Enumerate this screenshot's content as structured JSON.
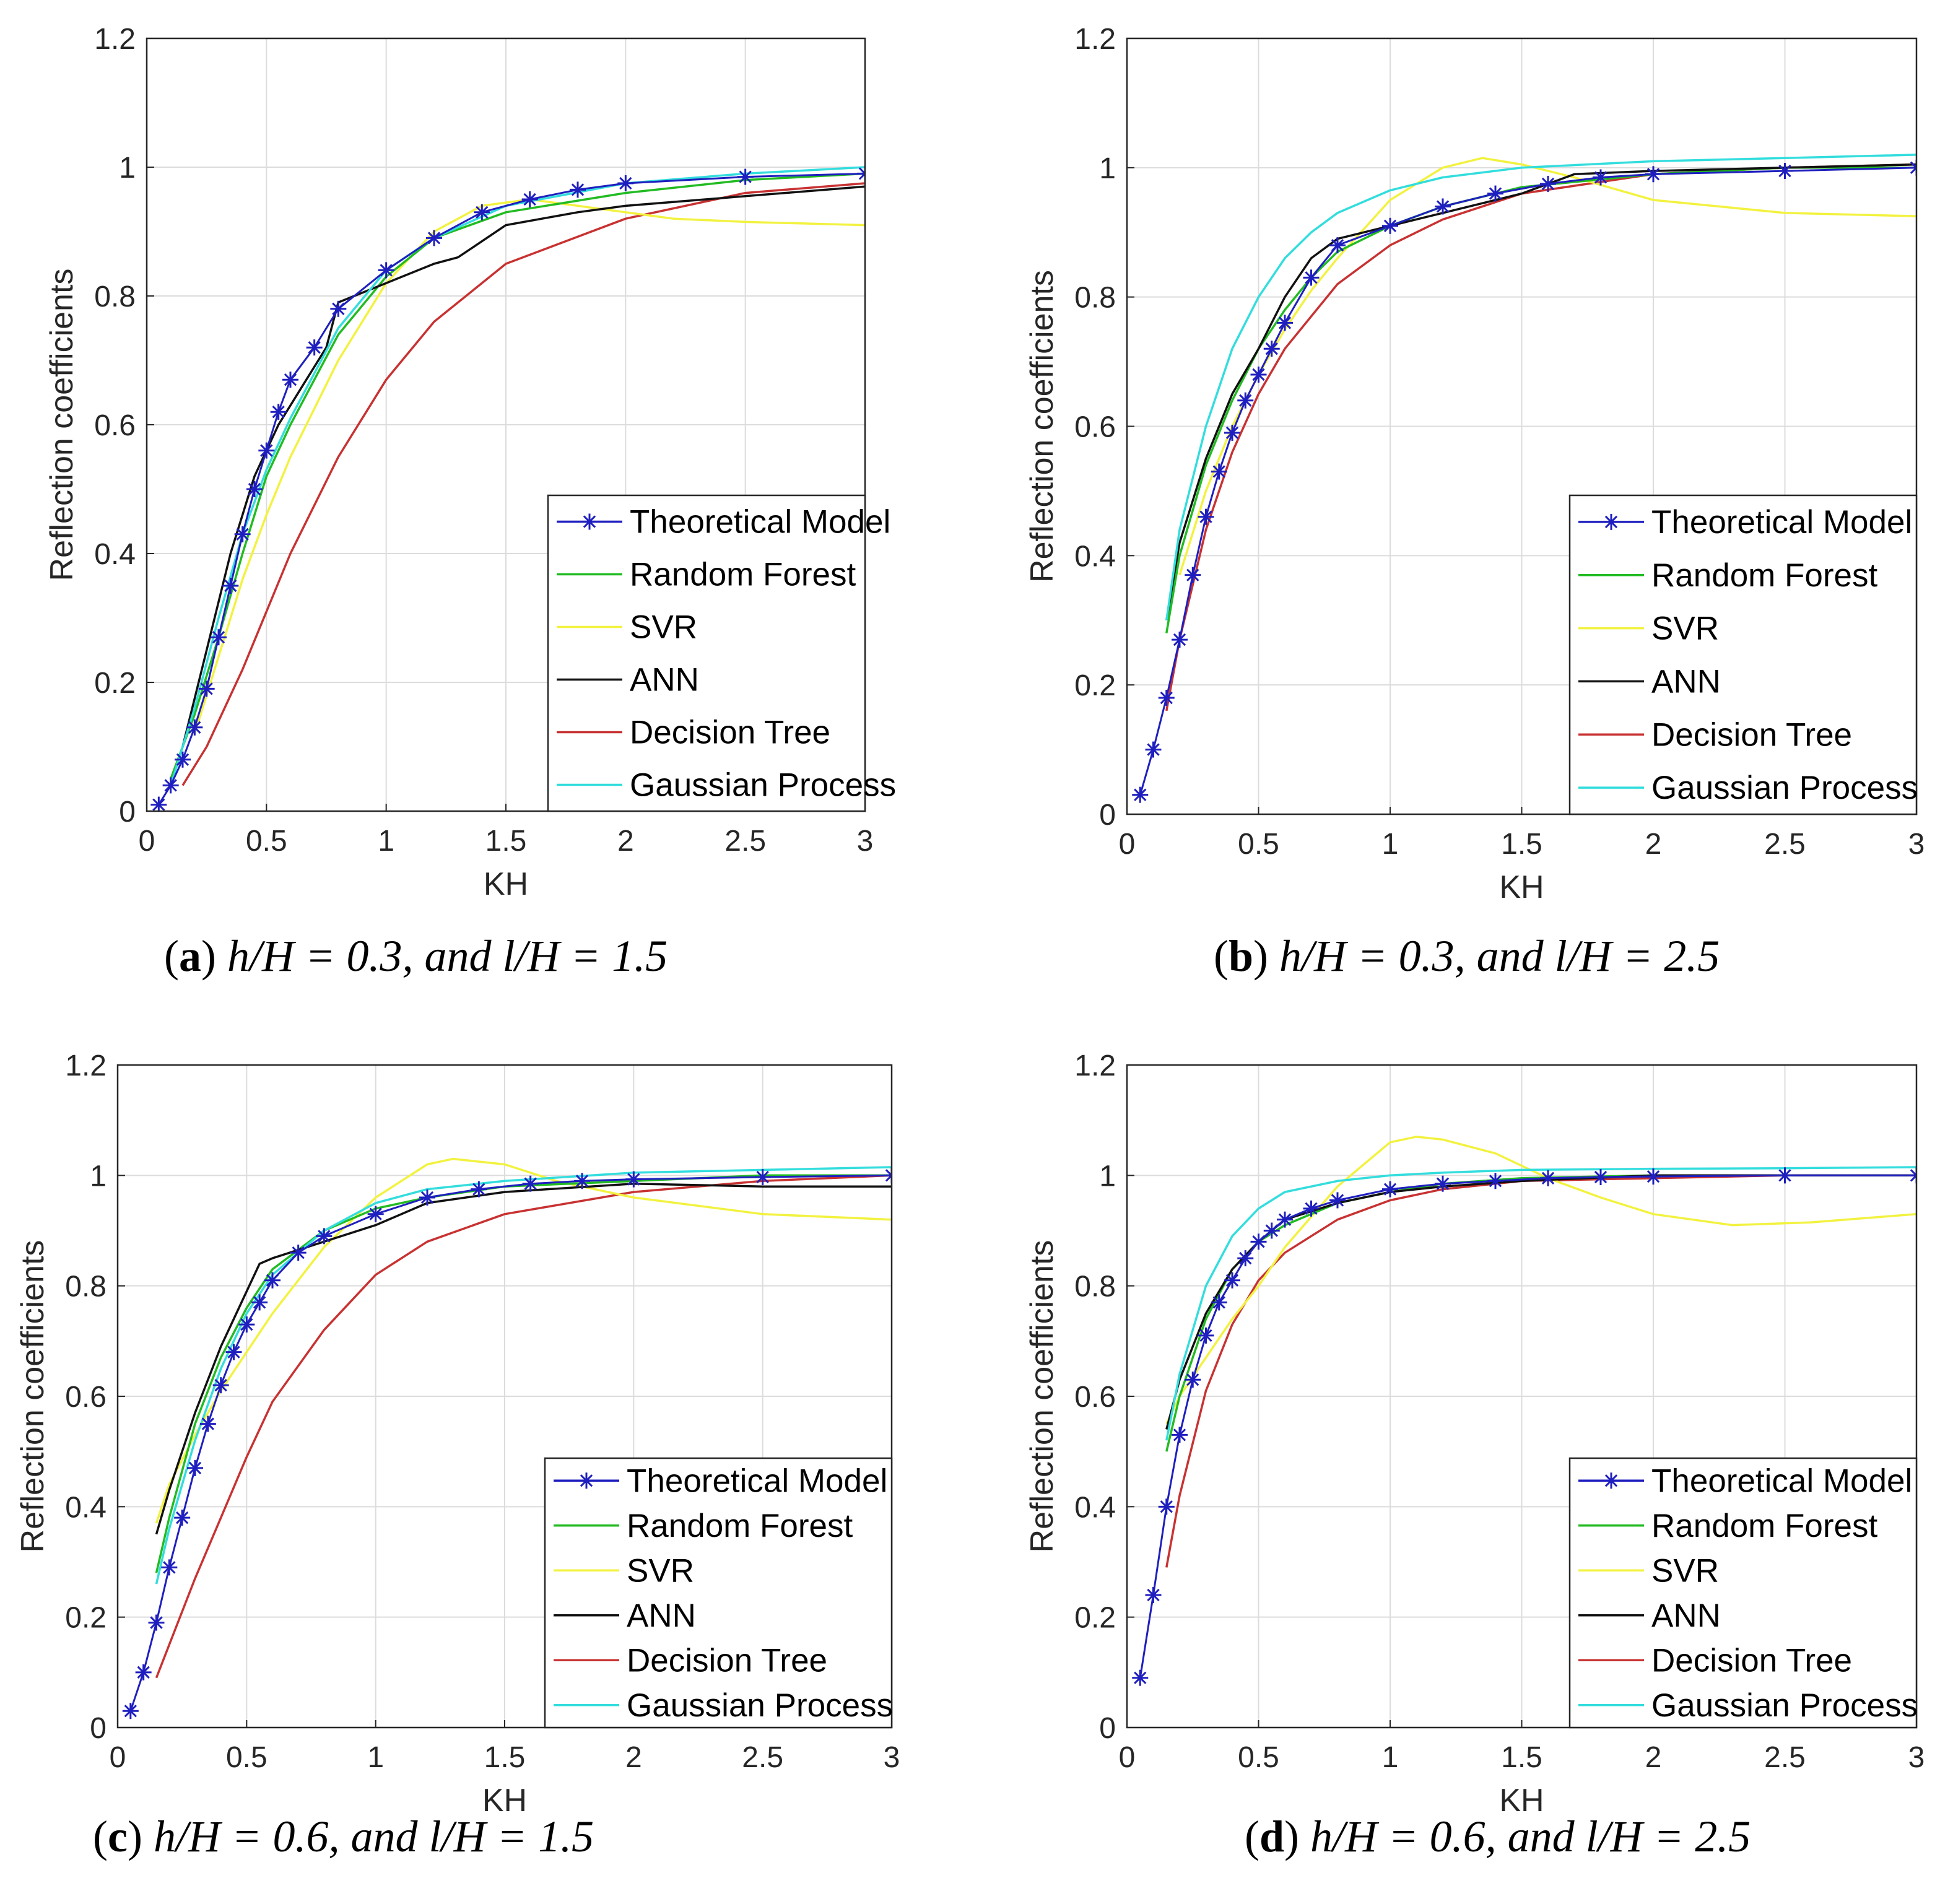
{
  "chart_data": [
    {
      "type": "line",
      "panel": "a",
      "caption": {
        "letter": "a",
        "text": "h/H = 0.3, and l/H = 1.5"
      },
      "xlabel": "KH",
      "ylabel": "Reflection coefficients",
      "xlim": [
        0,
        3
      ],
      "ylim": [
        0,
        1.2
      ],
      "xticks": [
        "0",
        "0.5",
        "1",
        "1.5",
        "2",
        "2.5",
        "3"
      ],
      "yticks": [
        "0",
        "0.2",
        "0.4",
        "0.6",
        "0.8",
        "1",
        "1.2"
      ],
      "grid": true,
      "legend_position": "bottom-right",
      "series": [
        {
          "name": "Theoretical Model",
          "color": "#1f1fbf",
          "marker": "asterisk",
          "x": [
            0.05,
            0.1,
            0.15,
            0.2,
            0.25,
            0.3,
            0.35,
            0.4,
            0.45,
            0.5,
            0.55,
            0.6,
            0.7,
            0.8,
            1.0,
            1.2,
            1.4,
            1.6,
            1.8,
            2.0,
            2.5,
            3.0
          ],
          "y": [
            0.01,
            0.04,
            0.08,
            0.13,
            0.19,
            0.27,
            0.35,
            0.43,
            0.5,
            0.56,
            0.62,
            0.67,
            0.72,
            0.78,
            0.84,
            0.89,
            0.93,
            0.95,
            0.965,
            0.975,
            0.985,
            0.99
          ]
        },
        {
          "name": "Random Forest",
          "color": "#22bb22",
          "x": [
            0.1,
            0.2,
            0.3,
            0.4,
            0.5,
            0.6,
            0.8,
            1.0,
            1.2,
            1.5,
            2.0,
            2.5,
            3.0
          ],
          "y": [
            0.05,
            0.15,
            0.27,
            0.4,
            0.52,
            0.6,
            0.74,
            0.83,
            0.89,
            0.93,
            0.96,
            0.98,
            0.99
          ]
        },
        {
          "name": "SVR",
          "color": "#f2f240",
          "x": [
            0.2,
            0.3,
            0.4,
            0.5,
            0.6,
            0.8,
            1.0,
            1.2,
            1.4,
            1.6,
            1.8,
            2.0,
            2.2,
            2.5,
            3.0
          ],
          "y": [
            0.12,
            0.24,
            0.36,
            0.46,
            0.55,
            0.7,
            0.82,
            0.9,
            0.94,
            0.95,
            0.94,
            0.93,
            0.92,
            0.915,
            0.91
          ]
        },
        {
          "name": "ANN",
          "color": "#111111",
          "x": [
            0.15,
            0.25,
            0.35,
            0.45,
            0.55,
            0.65,
            0.75,
            0.8,
            1.0,
            1.2,
            1.3,
            1.5,
            1.8,
            2.0,
            2.5,
            3.0
          ],
          "y": [
            0.1,
            0.25,
            0.4,
            0.52,
            0.6,
            0.66,
            0.72,
            0.79,
            0.82,
            0.85,
            0.86,
            0.91,
            0.93,
            0.94,
            0.955,
            0.97
          ]
        },
        {
          "name": "Decision Tree",
          "color": "#c83232",
          "x": [
            0.15,
            0.25,
            0.4,
            0.6,
            0.8,
            1.0,
            1.2,
            1.5,
            2.0,
            2.5,
            3.0
          ],
          "y": [
            0.04,
            0.1,
            0.22,
            0.4,
            0.55,
            0.67,
            0.76,
            0.85,
            0.92,
            0.96,
            0.975
          ]
        },
        {
          "name": "Gaussian Process",
          "color": "#33dddd",
          "x": [
            0.1,
            0.2,
            0.3,
            0.4,
            0.5,
            0.6,
            0.7,
            0.8,
            1.0,
            1.2,
            1.5,
            2.0,
            2.5,
            3.0
          ],
          "y": [
            0.04,
            0.16,
            0.3,
            0.43,
            0.53,
            0.61,
            0.68,
            0.75,
            0.84,
            0.89,
            0.94,
            0.975,
            0.99,
            1.0
          ]
        }
      ]
    },
    {
      "type": "line",
      "panel": "b",
      "caption": {
        "letter": "b",
        "text": "h/H = 0.3, and l/H = 2.5"
      },
      "xlabel": "KH",
      "ylabel": "Reflection coefficients",
      "xlim": [
        0,
        3
      ],
      "ylim": [
        0,
        1.2
      ],
      "xticks": [
        "0",
        "0.5",
        "1",
        "1.5",
        "2",
        "2.5",
        "3"
      ],
      "yticks": [
        "0",
        "0.2",
        "0.4",
        "0.6",
        "0.8",
        "1",
        "1.2"
      ],
      "grid": true,
      "legend_position": "bottom-right",
      "series": [
        {
          "name": "Theoretical Model",
          "color": "#1f1fbf",
          "marker": "asterisk",
          "x": [
            0.05,
            0.1,
            0.15,
            0.2,
            0.25,
            0.3,
            0.35,
            0.4,
            0.45,
            0.5,
            0.55,
            0.6,
            0.7,
            0.8,
            1.0,
            1.2,
            1.4,
            1.6,
            1.8,
            2.0,
            2.5,
            3.0
          ],
          "y": [
            0.03,
            0.1,
            0.18,
            0.27,
            0.37,
            0.46,
            0.53,
            0.59,
            0.64,
            0.68,
            0.72,
            0.76,
            0.83,
            0.88,
            0.91,
            0.94,
            0.96,
            0.975,
            0.985,
            0.99,
            0.995,
            1.0
          ]
        },
        {
          "name": "Random Forest",
          "color": "#22bb22",
          "x": [
            0.15,
            0.2,
            0.3,
            0.4,
            0.5,
            0.6,
            0.7,
            0.8,
            1.0,
            1.2,
            1.5,
            2.0,
            2.5,
            3.0
          ],
          "y": [
            0.28,
            0.4,
            0.54,
            0.64,
            0.72,
            0.78,
            0.83,
            0.87,
            0.91,
            0.94,
            0.97,
            0.99,
            1.0,
            1.0
          ]
        },
        {
          "name": "SVR",
          "color": "#f2f240",
          "x": [
            0.2,
            0.3,
            0.4,
            0.5,
            0.6,
            0.7,
            0.8,
            1.0,
            1.2,
            1.35,
            1.5,
            1.7,
            2.0,
            2.5,
            3.0
          ],
          "y": [
            0.37,
            0.5,
            0.6,
            0.68,
            0.75,
            0.81,
            0.86,
            0.95,
            1.0,
            1.015,
            1.005,
            0.985,
            0.95,
            0.93,
            0.925
          ]
        },
        {
          "name": "ANN",
          "color": "#111111",
          "x": [
            0.15,
            0.2,
            0.3,
            0.4,
            0.5,
            0.6,
            0.7,
            0.8,
            1.0,
            1.2,
            1.5,
            1.7,
            2.0,
            2.5,
            3.0
          ],
          "y": [
            0.3,
            0.42,
            0.55,
            0.65,
            0.72,
            0.8,
            0.86,
            0.89,
            0.91,
            0.93,
            0.96,
            0.99,
            0.995,
            1.0,
            1.005
          ]
        },
        {
          "name": "Decision Tree",
          "color": "#c83232",
          "x": [
            0.15,
            0.2,
            0.3,
            0.4,
            0.5,
            0.6,
            0.8,
            1.0,
            1.2,
            1.5,
            2.0,
            2.5,
            3.0
          ],
          "y": [
            0.16,
            0.27,
            0.44,
            0.56,
            0.65,
            0.72,
            0.82,
            0.88,
            0.92,
            0.96,
            0.99,
            1.0,
            1.005
          ]
        },
        {
          "name": "Gaussian Process",
          "color": "#33dddd",
          "x": [
            0.15,
            0.2,
            0.3,
            0.4,
            0.5,
            0.6,
            0.7,
            0.8,
            1.0,
            1.2,
            1.5,
            2.0,
            2.5,
            3.0
          ],
          "y": [
            0.3,
            0.44,
            0.6,
            0.72,
            0.8,
            0.86,
            0.9,
            0.93,
            0.965,
            0.985,
            1.0,
            1.01,
            1.015,
            1.02
          ]
        }
      ]
    },
    {
      "type": "line",
      "panel": "c",
      "caption": {
        "letter": "c",
        "text": "h/H = 0.6, and l/H = 1.5"
      },
      "xlabel": "KH",
      "ylabel": "Reflection coefficients",
      "xlim": [
        0,
        3
      ],
      "ylim": [
        0,
        1.2
      ],
      "xticks": [
        "0",
        "0.5",
        "1",
        "1.5",
        "2",
        "2.5",
        "3"
      ],
      "yticks": [
        "0",
        "0.2",
        "0.4",
        "0.6",
        "0.8",
        "1",
        "1.2"
      ],
      "grid": true,
      "legend_position": "bottom-right",
      "series": [
        {
          "name": "Theoretical Model",
          "color": "#1f1fbf",
          "marker": "asterisk",
          "x": [
            0.05,
            0.1,
            0.15,
            0.2,
            0.25,
            0.3,
            0.35,
            0.4,
            0.45,
            0.5,
            0.55,
            0.6,
            0.7,
            0.8,
            1.0,
            1.2,
            1.4,
            1.6,
            1.8,
            2.0,
            2.5,
            3.0
          ],
          "y": [
            0.03,
            0.1,
            0.19,
            0.29,
            0.38,
            0.47,
            0.55,
            0.62,
            0.68,
            0.73,
            0.77,
            0.81,
            0.86,
            0.89,
            0.93,
            0.96,
            0.975,
            0.985,
            0.99,
            0.993,
            0.997,
            1.0
          ]
        },
        {
          "name": "Random Forest",
          "color": "#22bb22",
          "x": [
            0.15,
            0.2,
            0.3,
            0.4,
            0.5,
            0.6,
            0.8,
            1.0,
            1.2,
            1.5,
            2.0,
            2.5,
            3.0
          ],
          "y": [
            0.28,
            0.38,
            0.55,
            0.67,
            0.76,
            0.83,
            0.9,
            0.94,
            0.96,
            0.98,
            0.99,
            1.0,
            1.0
          ]
        },
        {
          "name": "SVR",
          "color": "#f2f240",
          "x": [
            0.15,
            0.2,
            0.3,
            0.4,
            0.5,
            0.6,
            0.8,
            1.0,
            1.2,
            1.3,
            1.5,
            1.7,
            2.0,
            2.5,
            3.0
          ],
          "y": [
            0.37,
            0.44,
            0.53,
            0.61,
            0.68,
            0.75,
            0.87,
            0.96,
            1.02,
            1.03,
            1.02,
            0.99,
            0.96,
            0.93,
            0.92
          ]
        },
        {
          "name": "ANN",
          "color": "#111111",
          "x": [
            0.15,
            0.2,
            0.3,
            0.4,
            0.5,
            0.55,
            0.6,
            0.8,
            1.0,
            1.2,
            1.5,
            2.0,
            2.5,
            3.0
          ],
          "y": [
            0.35,
            0.43,
            0.57,
            0.69,
            0.79,
            0.84,
            0.85,
            0.88,
            0.91,
            0.95,
            0.97,
            0.985,
            0.98,
            0.98
          ]
        },
        {
          "name": "Decision Tree",
          "color": "#c83232",
          "x": [
            0.15,
            0.2,
            0.3,
            0.4,
            0.5,
            0.6,
            0.8,
            1.0,
            1.2,
            1.5,
            2.0,
            2.5,
            3.0
          ],
          "y": [
            0.09,
            0.15,
            0.27,
            0.38,
            0.49,
            0.59,
            0.72,
            0.82,
            0.88,
            0.93,
            0.97,
            0.99,
            1.0
          ]
        },
        {
          "name": "Gaussian Process",
          "color": "#33dddd",
          "x": [
            0.15,
            0.2,
            0.3,
            0.4,
            0.5,
            0.6,
            0.8,
            1.0,
            1.2,
            1.5,
            2.0,
            2.5,
            3.0
          ],
          "y": [
            0.26,
            0.36,
            0.52,
            0.65,
            0.75,
            0.82,
            0.9,
            0.95,
            0.975,
            0.99,
            1.005,
            1.01,
            1.015
          ]
        }
      ]
    },
    {
      "type": "line",
      "panel": "d",
      "caption": {
        "letter": "d",
        "text": "h/H = 0.6, and l/H = 2.5"
      },
      "xlabel": "KH",
      "ylabel": "Reflection coefficients",
      "xlim": [
        0,
        3
      ],
      "ylim": [
        0,
        1.2
      ],
      "xticks": [
        "0",
        "0.5",
        "1",
        "1.5",
        "2",
        "2.5",
        "3"
      ],
      "yticks": [
        "0",
        "0.2",
        "0.4",
        "0.6",
        "0.8",
        "1",
        "1.2"
      ],
      "grid": true,
      "legend_position": "bottom-right",
      "series": [
        {
          "name": "Theoretical Model",
          "color": "#1f1fbf",
          "marker": "asterisk",
          "x": [
            0.05,
            0.1,
            0.15,
            0.2,
            0.25,
            0.3,
            0.35,
            0.4,
            0.45,
            0.5,
            0.55,
            0.6,
            0.7,
            0.8,
            1.0,
            1.2,
            1.4,
            1.6,
            1.8,
            2.0,
            2.5,
            3.0
          ],
          "y": [
            0.09,
            0.24,
            0.4,
            0.53,
            0.63,
            0.71,
            0.77,
            0.81,
            0.85,
            0.88,
            0.9,
            0.92,
            0.94,
            0.955,
            0.975,
            0.985,
            0.99,
            0.995,
            0.997,
            0.998,
            1.0,
            1.0
          ]
        },
        {
          "name": "Random Forest",
          "color": "#22bb22",
          "x": [
            0.15,
            0.2,
            0.3,
            0.4,
            0.5,
            0.6,
            0.8,
            1.0,
            1.2,
            1.5,
            2.0,
            2.5,
            3.0
          ],
          "y": [
            0.5,
            0.6,
            0.74,
            0.83,
            0.88,
            0.91,
            0.95,
            0.97,
            0.985,
            0.995,
            1.0,
            1.0,
            1.0
          ]
        },
        {
          "name": "SVR",
          "color": "#f2f240",
          "x": [
            0.15,
            0.2,
            0.3,
            0.4,
            0.5,
            0.6,
            0.8,
            1.0,
            1.1,
            1.2,
            1.4,
            1.6,
            1.8,
            2.0,
            2.3,
            2.6,
            3.0
          ],
          "y": [
            0.55,
            0.6,
            0.67,
            0.74,
            0.8,
            0.87,
            0.98,
            1.06,
            1.07,
            1.065,
            1.04,
            0.995,
            0.96,
            0.93,
            0.91,
            0.915,
            0.93
          ]
        },
        {
          "name": "ANN",
          "color": "#111111",
          "x": [
            0.15,
            0.2,
            0.3,
            0.4,
            0.5,
            0.6,
            0.8,
            1.0,
            1.2,
            1.5,
            2.0,
            2.5,
            3.0
          ],
          "y": [
            0.54,
            0.63,
            0.75,
            0.83,
            0.88,
            0.92,
            0.95,
            0.97,
            0.98,
            0.99,
            1.0,
            1.0,
            1.0
          ]
        },
        {
          "name": "Decision Tree",
          "color": "#c83232",
          "x": [
            0.15,
            0.2,
            0.3,
            0.4,
            0.5,
            0.6,
            0.8,
            1.0,
            1.2,
            1.5,
            2.0,
            2.5,
            3.0
          ],
          "y": [
            0.29,
            0.42,
            0.61,
            0.73,
            0.81,
            0.86,
            0.92,
            0.955,
            0.975,
            0.99,
            0.995,
            1.0,
            1.0
          ]
        },
        {
          "name": "Gaussian Process",
          "color": "#33dddd",
          "x": [
            0.15,
            0.2,
            0.3,
            0.4,
            0.5,
            0.6,
            0.8,
            1.0,
            1.2,
            1.5,
            2.0,
            2.5,
            3.0
          ],
          "y": [
            0.52,
            0.64,
            0.8,
            0.89,
            0.94,
            0.97,
            0.99,
            1.0,
            1.005,
            1.01,
            1.012,
            1.013,
            1.015
          ]
        }
      ]
    }
  ]
}
